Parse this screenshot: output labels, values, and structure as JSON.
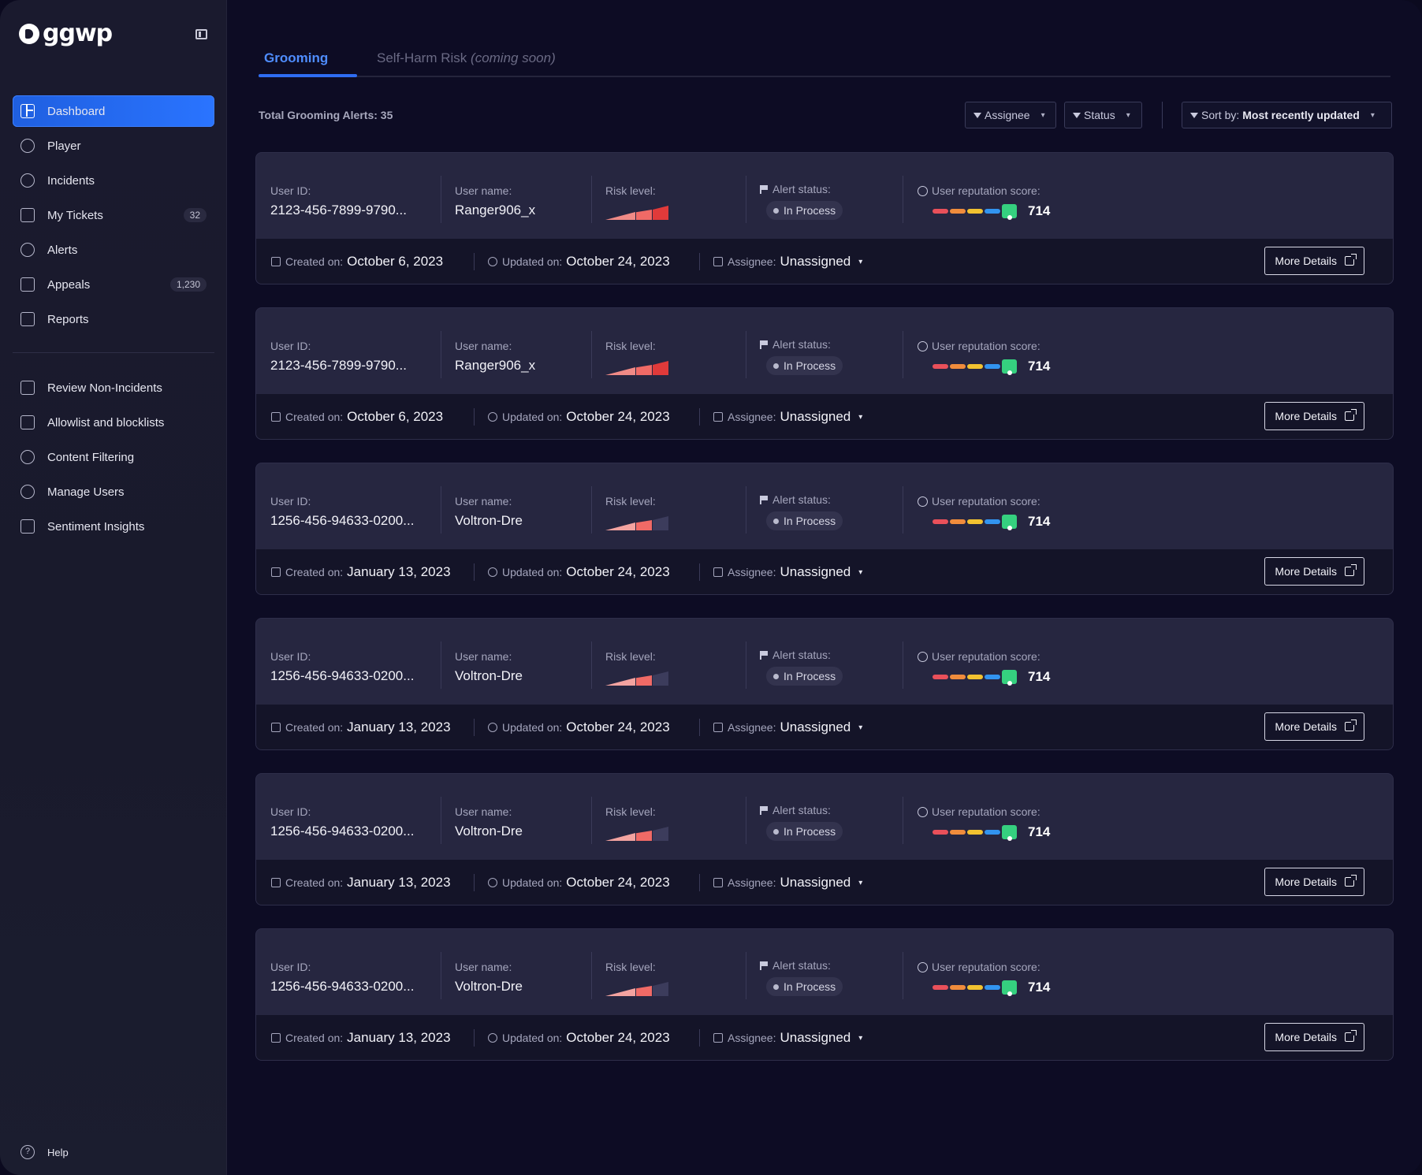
{
  "brand": {
    "logo_text": "ggwp"
  },
  "sidebar": {
    "items": [
      {
        "label": "Dashboard",
        "icon": "dashboard-icon",
        "active": true,
        "badge": ""
      },
      {
        "label": "Player",
        "icon": "gamepad-icon",
        "badge": ""
      },
      {
        "label": "Incidents",
        "icon": "alert-circle-icon",
        "badge": ""
      },
      {
        "label": "My Tickets",
        "icon": "ticket-icon",
        "badge": "32"
      },
      {
        "label": "Alerts",
        "icon": "bell-icon",
        "badge": ""
      },
      {
        "label": "Appeals",
        "icon": "chart-icon",
        "badge": "1,230"
      },
      {
        "label": "Reports",
        "icon": "copy-icon",
        "badge": ""
      }
    ],
    "secondary_items": [
      {
        "label": "Review Non-Incidents",
        "icon": "review-icon"
      },
      {
        "label": "Allowlist and blocklists",
        "icon": "list-icon"
      },
      {
        "label": "Content Filtering",
        "icon": "toggle-icon"
      },
      {
        "label": "Manage Users",
        "icon": "key-icon"
      },
      {
        "label": "Sentiment Insights",
        "icon": "sparkline-icon"
      }
    ],
    "help_label": "Help"
  },
  "tabs": {
    "grooming": "Grooming",
    "self_harm": "Self-Harm Risk",
    "self_harm_note": "(coming soon)"
  },
  "toolbar": {
    "total_label": "Total Grooming Alerts: 35",
    "assignee_filter": "Assignee",
    "status_filter": "Status",
    "sort_prefix": "Sort by:",
    "sort_value": "Most recently updated"
  },
  "labels": {
    "user_id": "User ID:",
    "user_name": "User name:",
    "risk_level": "Risk level:",
    "alert_status": "Alert status:",
    "reputation": "User reputation score:",
    "created": "Created on:",
    "updated": "Updated on:",
    "assignee": "Assignee:",
    "more_details": "More Details"
  },
  "alerts": [
    {
      "user_id": "2123-456-7899-9790...",
      "user_name": "Ranger906_x",
      "risk": "high",
      "status": "In Process",
      "reputation": "714",
      "created": "October 6, 2023",
      "updated": "October 24, 2023",
      "assignee": "Unassigned"
    },
    {
      "user_id": "2123-456-7899-9790...",
      "user_name": "Ranger906_x",
      "risk": "high",
      "status": "In Process",
      "reputation": "714",
      "created": "October 6, 2023",
      "updated": "October 24, 2023",
      "assignee": "Unassigned"
    },
    {
      "user_id": "1256-456-94633-0200...",
      "user_name": "Voltron-Dre",
      "risk": "medium",
      "status": "In Process",
      "reputation": "714",
      "created": "January 13, 2023",
      "updated": "October 24, 2023",
      "assignee": "Unassigned"
    },
    {
      "user_id": "1256-456-94633-0200...",
      "user_name": "Voltron-Dre",
      "risk": "medium",
      "status": "In Process",
      "reputation": "714",
      "created": "January 13, 2023",
      "updated": "October 24, 2023",
      "assignee": "Unassigned"
    },
    {
      "user_id": "1256-456-94633-0200...",
      "user_name": "Voltron-Dre",
      "risk": "medium",
      "status": "In Process",
      "reputation": "714",
      "created": "January 13, 2023",
      "updated": "October 24, 2023",
      "assignee": "Unassigned"
    },
    {
      "user_id": "1256-456-94633-0200...",
      "user_name": "Voltron-Dre",
      "risk": "medium",
      "status": "In Process",
      "reputation": "714",
      "created": "January 13, 2023",
      "updated": "October 24, 2023",
      "assignee": "Unassigned"
    }
  ]
}
